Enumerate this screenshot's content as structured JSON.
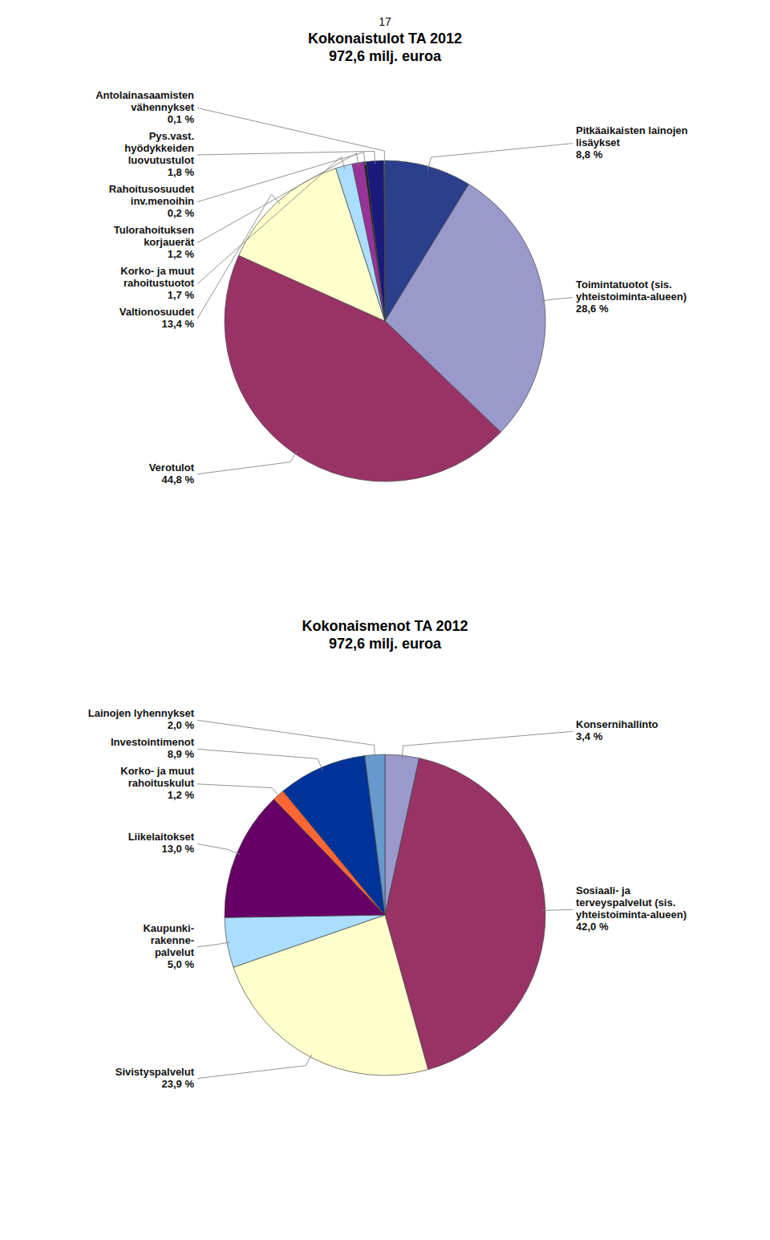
{
  "page_number": "17",
  "chart_data": [
    {
      "type": "pie",
      "title": "Kokonaistulot TA 2012\n972,6 milj. euroa",
      "categories": [
        "Pitkäaikaisten lainojen\nlisäykset\n8,8 %",
        "Toimintatuotot (sis.\nyhteistoiminta-alueen)\n28,6 %",
        "Verotulot\n44,8 %",
        "Valtionosuudet\n13,4 %",
        "Korko- ja muut\nrahoitustuotot\n1,7 %",
        "Tulorahoituksen\nkorjauerät\n1,2 %",
        "Rahoitusosuudet\ninv.menoihin\n0,2 %",
        "Pys.vast.\nhyödykkeiden\nluovutustulot\n1,8 %",
        "Antolainasaamisten\nvähennykset\n0,1 %"
      ],
      "values": [
        8.8,
        28.6,
        44.8,
        13.4,
        1.7,
        1.2,
        0.2,
        1.8,
        0.1
      ],
      "colors": [
        "#2b3f8c",
        "#9999cc",
        "#993366",
        "#ffffcc",
        "#aaddff",
        "#993399",
        "#111111",
        "#1a1a7a",
        "#336699"
      ]
    },
    {
      "type": "pie",
      "title": "Kokonaismenot TA 2012\n972,6 milj. euroa",
      "categories": [
        "Konsernihallinto\n3,4 %",
        "Sosiaali- ja\nterveyspalvelut (sis.\nyhteistoiminta-alueen)\n42,0 %",
        "Sivistyspalvelut\n23,9 %",
        "Kaupunki-\nrakenne-\npalvelut\n5,0 %",
        "Liikelaitokset\n13,0 %",
        "Korko- ja muut\nrahoituskulut\n1,2 %",
        "Investointimenot\n8,9 %",
        "Lainojen lyhennykset\n2,0 %"
      ],
      "values": [
        3.4,
        42.0,
        23.9,
        5.0,
        13.0,
        1.2,
        8.9,
        2.0
      ],
      "colors": [
        "#9999cc",
        "#993366",
        "#ffffcc",
        "#aaddff",
        "#660066",
        "#ff6633",
        "#003399",
        "#6699cc"
      ]
    }
  ]
}
